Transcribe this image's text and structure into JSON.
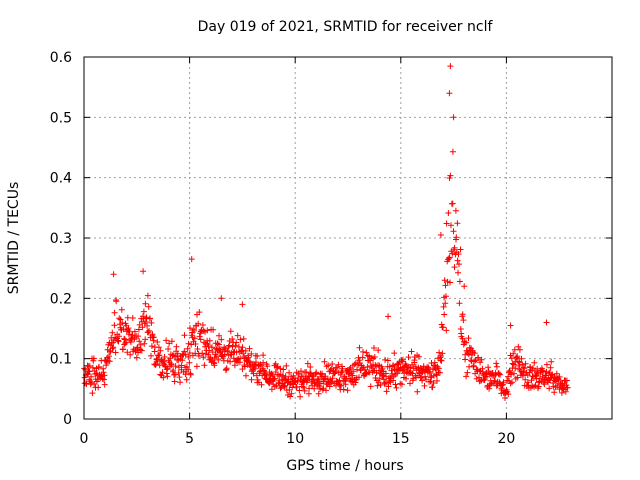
{
  "chart_data": {
    "type": "scatter",
    "title": "Day 019 of 2021, SRMTID for receiver nclf",
    "xlabel": "GPS time / hours",
    "ylabel": "SRMTID / TECUs",
    "xlim": [
      0,
      25
    ],
    "ylim": [
      0,
      0.6
    ],
    "x_ticks": [
      0,
      5,
      10,
      15,
      20
    ],
    "x_tick_labels": [
      "0",
      "5",
      "10",
      "15",
      "20"
    ],
    "y_ticks": [
      0,
      0.1,
      0.2,
      0.3,
      0.4,
      0.5,
      0.6
    ],
    "y_tick_labels": [
      "0",
      "0.1",
      "0.2",
      "0.3",
      "0.4",
      "0.5",
      "0.6"
    ],
    "grid": true,
    "marker": "+",
    "color": "#ff0000",
    "x_range_hours": [
      0,
      22.9
    ],
    "series": [
      {
        "name": "SRMTID",
        "envelope": {
          "x": [
            0,
            0.5,
            1.0,
            1.5,
            2.0,
            2.5,
            3.0,
            3.5,
            4.0,
            4.5,
            5.0,
            5.5,
            6.0,
            6.5,
            7.0,
            7.5,
            8.0,
            9.0,
            10.0,
            11.0,
            12.0,
            13.0,
            13.5,
            14.0,
            14.5,
            15.0,
            15.5,
            16.0,
            16.5,
            16.9,
            17.1,
            17.3,
            17.5,
            17.7,
            18.0,
            18.5,
            19.0,
            19.5,
            20.0,
            20.3,
            20.6,
            21.0,
            21.5,
            22.0,
            22.5,
            22.9
          ],
          "center": [
            0.07,
            0.08,
            0.08,
            0.15,
            0.14,
            0.12,
            0.16,
            0.1,
            0.1,
            0.09,
            0.11,
            0.14,
            0.12,
            0.11,
            0.11,
            0.1,
            0.09,
            0.07,
            0.06,
            0.07,
            0.07,
            0.08,
            0.09,
            0.08,
            0.07,
            0.08,
            0.08,
            0.08,
            0.07,
            0.09,
            0.2,
            0.3,
            0.36,
            0.25,
            0.12,
            0.09,
            0.07,
            0.07,
            0.05,
            0.09,
            0.1,
            0.07,
            0.07,
            0.07,
            0.06,
            0.05
          ],
          "spread": [
            0.03,
            0.04,
            0.03,
            0.06,
            0.06,
            0.05,
            0.06,
            0.04,
            0.04,
            0.04,
            0.06,
            0.06,
            0.05,
            0.04,
            0.04,
            0.04,
            0.03,
            0.03,
            0.03,
            0.03,
            0.03,
            0.04,
            0.04,
            0.04,
            0.04,
            0.04,
            0.04,
            0.03,
            0.03,
            0.05,
            0.09,
            0.14,
            0.16,
            0.11,
            0.05,
            0.04,
            0.03,
            0.03,
            0.02,
            0.04,
            0.04,
            0.03,
            0.03,
            0.03,
            0.02,
            0.02
          ]
        },
        "peaks": [
          {
            "x": 1.4,
            "y": 0.24
          },
          {
            "x": 2.8,
            "y": 0.245
          },
          {
            "x": 5.1,
            "y": 0.265
          },
          {
            "x": 6.5,
            "y": 0.2
          },
          {
            "x": 7.5,
            "y": 0.19
          },
          {
            "x": 14.4,
            "y": 0.17
          },
          {
            "x": 16.9,
            "y": 0.305
          },
          {
            "x": 17.35,
            "y": 0.585
          },
          {
            "x": 17.3,
            "y": 0.54
          },
          {
            "x": 17.5,
            "y": 0.5
          },
          {
            "x": 18.0,
            "y": 0.22
          },
          {
            "x": 20.2,
            "y": 0.155
          },
          {
            "x": 21.9,
            "y": 0.16
          }
        ],
        "sample_count": 1150
      }
    ]
  }
}
